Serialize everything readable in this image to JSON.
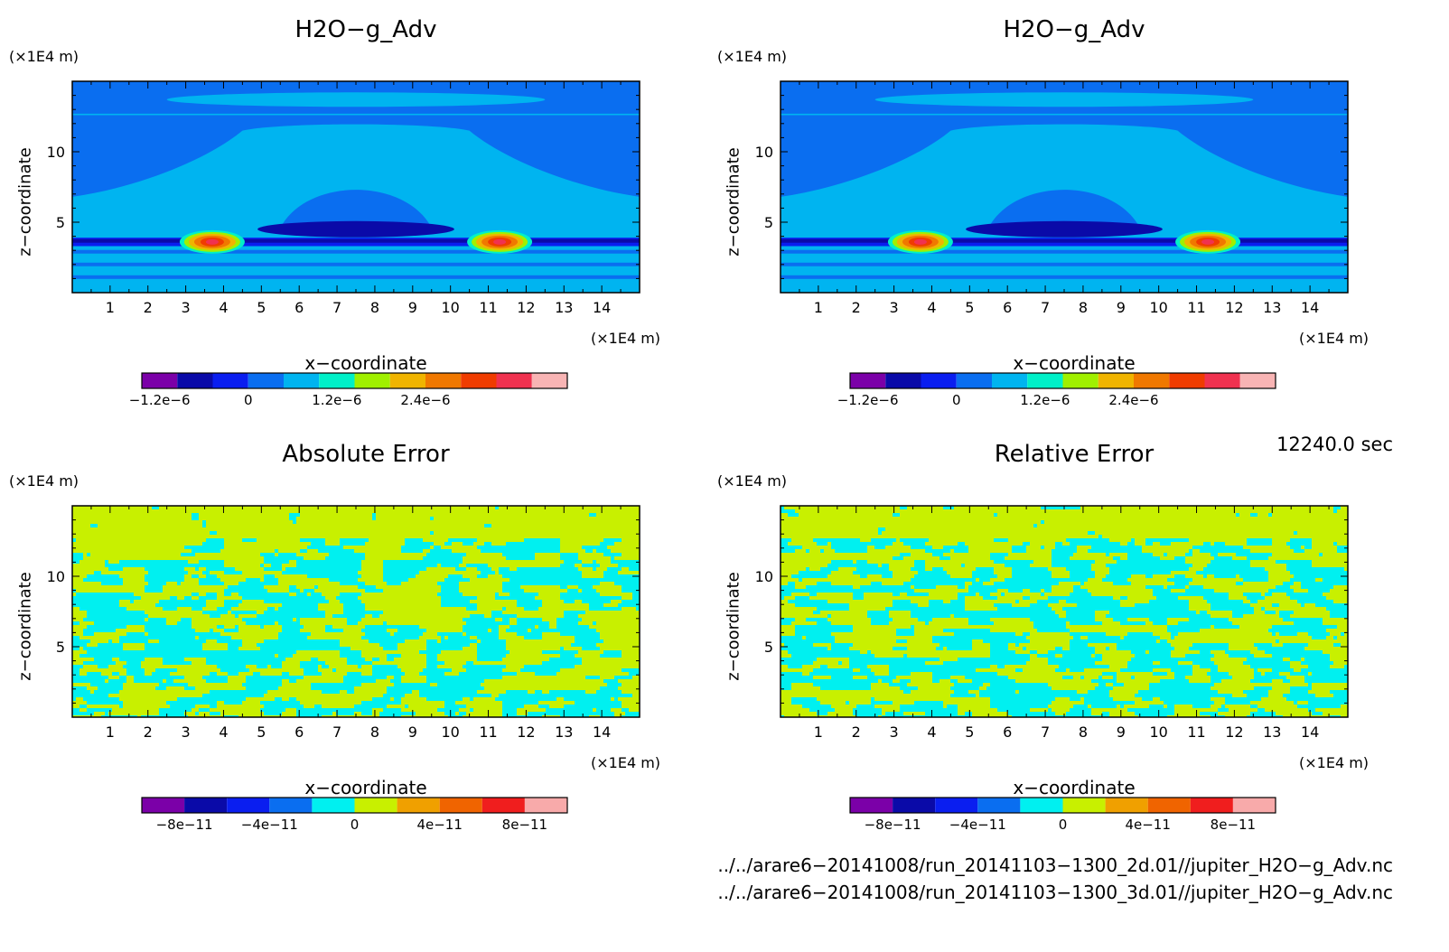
{
  "panels": [
    {
      "id": "h2o-3d",
      "title": "H2O−g_Adv",
      "y_unit": "(×1E4 m)",
      "x_unit": "(×1E4 m)",
      "xlabel": "x−coordinate",
      "ylabel": "z−coordinate",
      "field": "advection",
      "colorbar_labels": [
        "−1.2e−6",
        "0",
        "1.2e−6",
        "2.4e−6"
      ]
    },
    {
      "id": "h2o-2d",
      "title": "H2O−g_Adv",
      "y_unit": "(×1E4 m)",
      "x_unit": "(×1E4 m)",
      "xlabel": "x−coordinate",
      "ylabel": "z−coordinate",
      "field": "advection",
      "colorbar_labels": [
        "−1.2e−6",
        "0",
        "1.2e−6",
        "2.4e−6"
      ]
    },
    {
      "id": "abs-error",
      "title": "Absolute Error",
      "y_unit": "(×1E4 m)",
      "x_unit": "(×1E4 m)",
      "xlabel": "x−coordinate",
      "ylabel": "z−coordinate",
      "field": "noise",
      "colorbar_labels": [
        "−8e−11",
        "−4e−11",
        "0",
        "4e−11",
        "8e−11"
      ]
    },
    {
      "id": "rel-error",
      "title": "Relative Error",
      "y_unit": "(×1E4 m)",
      "x_unit": "(×1E4 m)",
      "xlabel": "x−coordinate",
      "ylabel": "z−coordinate",
      "field": "noise",
      "colorbar_labels": [
        "−8e−11",
        "−4e−11",
        "0",
        "4e−11",
        "8e−11"
      ]
    }
  ],
  "timestamp": "12240.0 sec",
  "footer": {
    "line1": "../../arare6−20141008/run_20141103−1300_2d.01//jupiter_H2O−g_Adv.nc",
    "line2": "../../arare6−20141008/run_20141103−1300_3d.01//jupiter_H2O−g_Adv.nc"
  },
  "chart_data": [
    {
      "type": "heatmap",
      "title": "H2O−g_Adv",
      "xlabel": "x−coordinate",
      "ylabel": "z−coordinate",
      "x_ticks": [
        1,
        2,
        3,
        4,
        5,
        6,
        7,
        8,
        9,
        10,
        11,
        12,
        13,
        14
      ],
      "y_ticks": [
        5,
        10
      ],
      "xlim": [
        0,
        15
      ],
      "ylim": [
        0,
        15
      ],
      "colorbar": {
        "colors": [
          "#7b00a8",
          "#0a0aa8",
          "#0a1ef0",
          "#0a6ef0",
          "#00b4f0",
          "#00f0c8",
          "#a0f000",
          "#f0b400",
          "#f07800",
          "#f03c00",
          "#f03250",
          "#f8b4b4"
        ],
        "ticks": [
          "−1.2e−6",
          "0",
          "1.2e−6",
          "2.4e−6"
        ]
      },
      "features": [
        {
          "desc": "positive maximum",
          "x": 3.7,
          "z": 3.6
        },
        {
          "desc": "positive maximum",
          "x": 11.3,
          "z": 3.6
        },
        {
          "desc": "negative minimum band",
          "x": 7.5,
          "z": 4.5
        }
      ]
    },
    {
      "type": "heatmap",
      "title": "H2O−g_Adv",
      "xlabel": "x−coordinate",
      "ylabel": "z−coordinate",
      "x_ticks": [
        1,
        2,
        3,
        4,
        5,
        6,
        7,
        8,
        9,
        10,
        11,
        12,
        13,
        14
      ],
      "y_ticks": [
        5,
        10
      ],
      "xlim": [
        0,
        15
      ],
      "ylim": [
        0,
        15
      ],
      "colorbar": {
        "colors": [
          "#7b00a8",
          "#0a0aa8",
          "#0a1ef0",
          "#0a6ef0",
          "#00b4f0",
          "#00f0c8",
          "#a0f000",
          "#f0b400",
          "#f07800",
          "#f03c00",
          "#f03250",
          "#f8b4b4"
        ],
        "ticks": [
          "−1.2e−6",
          "0",
          "1.2e−6",
          "2.4e−6"
        ]
      },
      "features": [
        {
          "desc": "positive maximum",
          "x": 3.7,
          "z": 3.6
        },
        {
          "desc": "positive maximum",
          "x": 11.3,
          "z": 3.6
        },
        {
          "desc": "negative minimum band",
          "x": 7.5,
          "z": 4.5
        }
      ]
    },
    {
      "type": "heatmap",
      "title": "Absolute Error",
      "xlabel": "x−coordinate",
      "ylabel": "z−coordinate",
      "x_ticks": [
        1,
        2,
        3,
        4,
        5,
        6,
        7,
        8,
        9,
        10,
        11,
        12,
        13,
        14
      ],
      "y_ticks": [
        5,
        10
      ],
      "xlim": [
        0,
        15
      ],
      "ylim": [
        0,
        15
      ],
      "colorbar": {
        "colors": [
          "#7b00a8",
          "#0a0aa8",
          "#0a1ef0",
          "#0a6ef0",
          "#00f0f0",
          "#c8f000",
          "#f0a000",
          "#f06400",
          "#f01e1e",
          "#f8aaaa"
        ],
        "ticks": [
          "−8e−11",
          "−4e−11",
          "0",
          "4e−11",
          "8e−11"
        ]
      },
      "dominant_levels": [
        "#00f0f0",
        "#c8f000"
      ]
    },
    {
      "type": "heatmap",
      "title": "Relative Error",
      "xlabel": "x−coordinate",
      "ylabel": "z−coordinate",
      "x_ticks": [
        1,
        2,
        3,
        4,
        5,
        6,
        7,
        8,
        9,
        10,
        11,
        12,
        13,
        14
      ],
      "y_ticks": [
        5,
        10
      ],
      "xlim": [
        0,
        15
      ],
      "ylim": [
        0,
        15
      ],
      "colorbar": {
        "colors": [
          "#7b00a8",
          "#0a0aa8",
          "#0a1ef0",
          "#0a6ef0",
          "#00f0f0",
          "#c8f000",
          "#f0a000",
          "#f06400",
          "#f01e1e",
          "#f8aaaa"
        ],
        "ticks": [
          "−8e−11",
          "−4e−11",
          "0",
          "4e−11",
          "8e−11"
        ]
      },
      "dominant_levels": [
        "#00f0f0",
        "#c8f000"
      ]
    }
  ]
}
